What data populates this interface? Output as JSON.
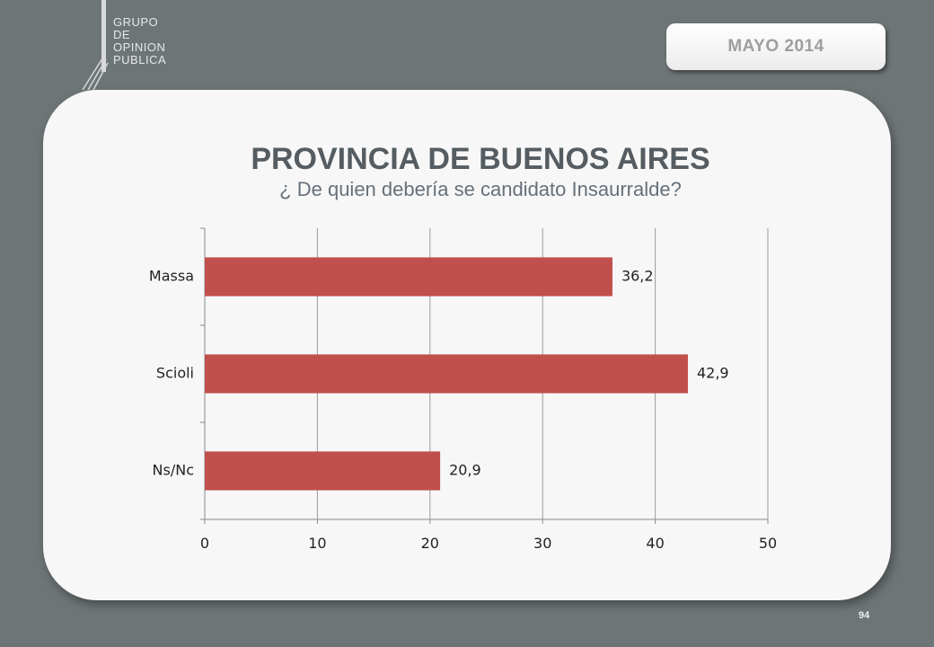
{
  "logo": {
    "lines": [
      "GRUPO",
      "DE",
      "OPINION",
      "PUBLICA"
    ]
  },
  "header": {
    "date_label": "MAYO  2014"
  },
  "chart_data": {
    "type": "bar",
    "orientation": "horizontal",
    "title": "PROVINCIA DE BUENOS AIRES",
    "subtitle": "¿ De quien debería se candidato Insaurralde?",
    "categories": [
      "Massa",
      "Scioli",
      "Ns/Nc"
    ],
    "values": [
      36.2,
      42.9,
      20.9
    ],
    "value_labels": [
      "36,2",
      "42,9",
      "20,9"
    ],
    "x_ticks": [
      "0",
      "10",
      "20",
      "30",
      "40",
      "50"
    ],
    "xlim": [
      0,
      50
    ],
    "bar_color": "#c0504d",
    "grid": true,
    "legend": "none"
  },
  "footer": {
    "page_number": "94"
  }
}
